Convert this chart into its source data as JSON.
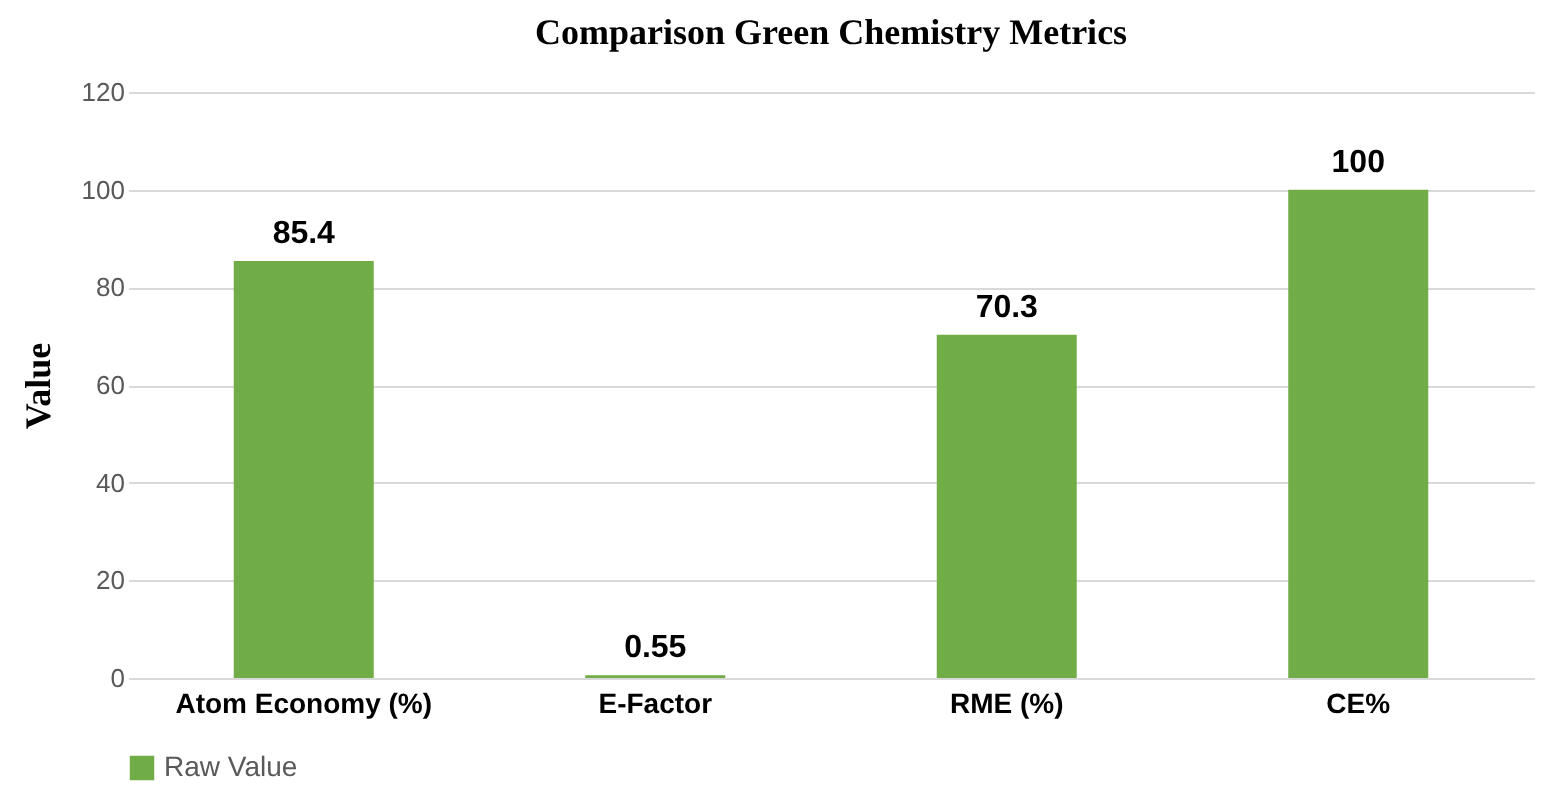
{
  "chart_data": {
    "type": "bar",
    "title": "Comparison Green Chemistry Metrics",
    "ylabel": "Value",
    "categories": [
      "Atom Economy (%)",
      "E-Factor",
      "RME (%)",
      "CE%"
    ],
    "series": [
      {
        "name": "Raw Value",
        "color": "#70ad47",
        "values": [
          85.4,
          0.55,
          70.3,
          100
        ]
      }
    ],
    "ylim": [
      0,
      120
    ],
    "yticks": [
      0,
      20,
      40,
      60,
      80,
      100,
      120
    ],
    "grid": "y",
    "legend": "bottom",
    "data_labels": true
  }
}
